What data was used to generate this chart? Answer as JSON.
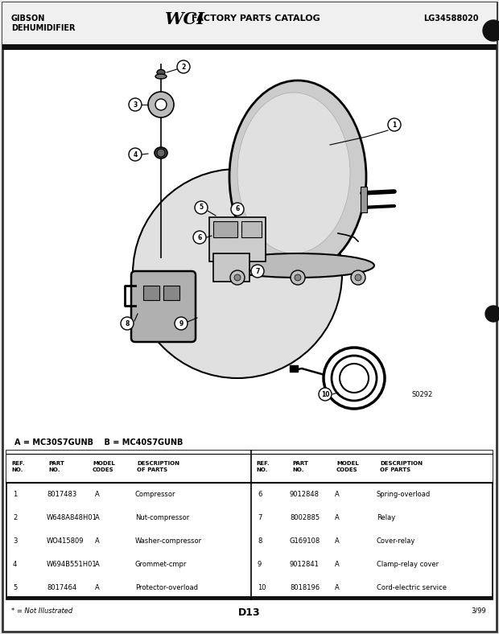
{
  "header_left_line1": "GIBSON",
  "header_left_line2": "DEHUMIDIFIER",
  "header_right": "LG34588020",
  "model_line_a": "A = MC30S7GUNB",
  "model_line_b": "B = MC40S7GUNB",
  "diagram_note": "S0292",
  "footer_note": "* = Not Illustrated",
  "page": "D13",
  "date": "3/99",
  "table_data_left": [
    [
      "1",
      "8017483",
      "A",
      "Compressor"
    ],
    [
      "2",
      "W648A848H01",
      "A",
      "Nut-compressor"
    ],
    [
      "3",
      "WO415809",
      "A",
      "Washer-compressor"
    ],
    [
      "4",
      "W694B551H01",
      "A",
      "Grommet-cmpr"
    ],
    [
      "5",
      "8017464",
      "A",
      "Protector-overload"
    ]
  ],
  "table_data_right": [
    [
      "6",
      "9012848",
      "A",
      "Spring-overload"
    ],
    [
      "7",
      "8002885",
      "A",
      "Relay"
    ],
    [
      "8",
      "G169108",
      "A",
      "Cover-relay"
    ],
    [
      "9",
      "9012841",
      "A",
      "Clamp-relay cover"
    ],
    [
      "10",
      "8018196",
      "A",
      "Cord-electric service"
    ]
  ]
}
